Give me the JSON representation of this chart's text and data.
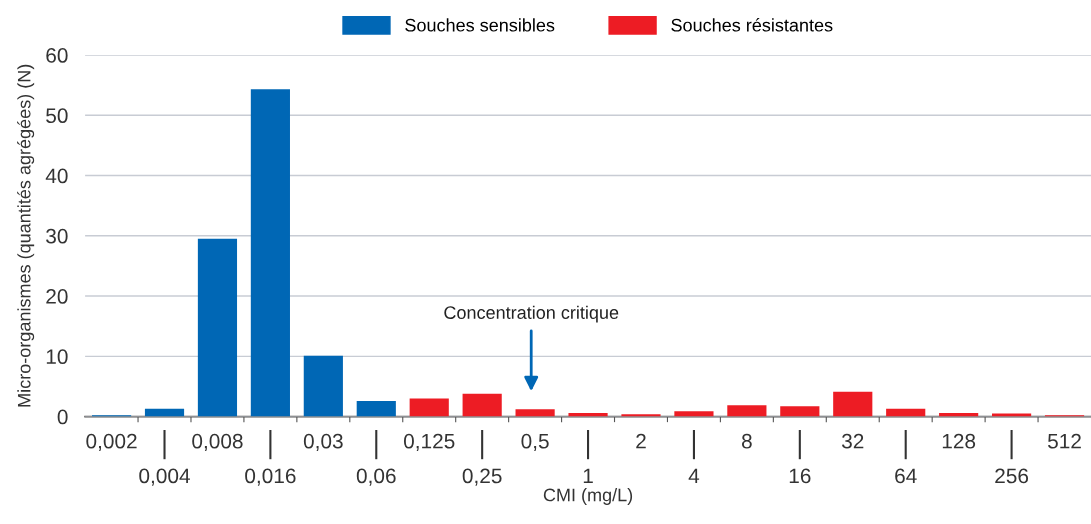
{
  "chart_data": {
    "type": "bar",
    "xlabel": "CMI (mg/L)",
    "ylabel": "Micro-organismes (quantités agrégées) (N)",
    "categories": [
      "0,002",
      "0,004",
      "0,008",
      "0,016",
      "0,03",
      "0,06",
      "0,125",
      "0,25",
      "0,5",
      "1",
      "2",
      "4",
      "8",
      "16",
      "32",
      "64",
      "128",
      "256",
      "512"
    ],
    "series": [
      {
        "name": "Souches sensibles",
        "color": "#0067b5",
        "values": [
          0.2,
          1.3,
          29.5,
          54.3,
          10.1,
          2.6,
          null,
          null,
          null,
          null,
          null,
          null,
          null,
          null,
          null,
          null,
          null,
          null,
          null
        ]
      },
      {
        "name": "Souches résistantes",
        "color": "#ed1c24",
        "values": [
          null,
          null,
          null,
          null,
          null,
          null,
          3.0,
          3.8,
          1.2,
          0.6,
          0.4,
          0.9,
          1.9,
          1.7,
          4.1,
          1.3,
          0.6,
          0.5,
          0.2
        ]
      }
    ],
    "ylim": [
      0,
      60
    ],
    "yticks": [
      0,
      10,
      20,
      30,
      40,
      50,
      60
    ],
    "grid": "y",
    "legend": "top",
    "annotations": [
      "Concentration critique"
    ]
  }
}
